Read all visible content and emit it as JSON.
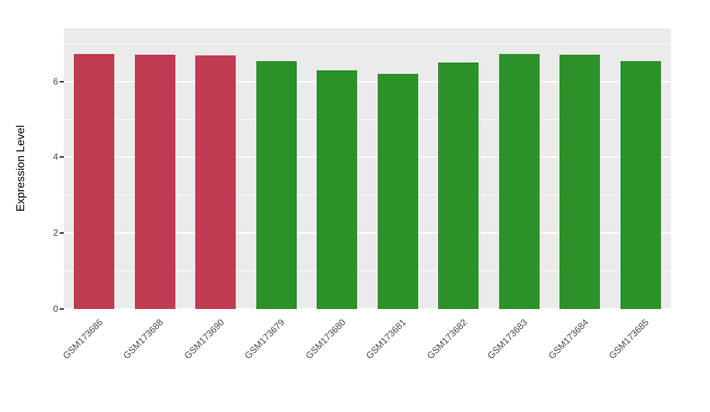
{
  "chart_data": {
    "type": "bar",
    "title": "",
    "xlabel": "",
    "ylabel": "Expression Level",
    "categories": [
      "GSM173686",
      "GSM173688",
      "GSM173690",
      "GSM173679",
      "GSM173680",
      "GSM173681",
      "GSM173682",
      "GSM173683",
      "GSM173684",
      "GSM173685"
    ],
    "values": [
      6.72,
      6.7,
      6.68,
      6.53,
      6.3,
      6.21,
      6.5,
      6.72,
      6.7,
      6.53
    ],
    "bar_colors": [
      "#C13B52",
      "#C13B52",
      "#C13B52",
      "#2B9128",
      "#2B9128",
      "#2B9128",
      "#2B9128",
      "#2B9128",
      "#2B9128",
      "#2B9128"
    ],
    "group_colors": {
      "red_group": "#C13B52",
      "green_group": "#2B9128"
    },
    "ylim": [
      0,
      7.4
    ],
    "y_major_ticks": [
      0,
      2,
      4,
      6
    ],
    "y_minor_ticks": [
      1,
      3,
      5,
      7
    ],
    "panel_bg": "#EBEBEB",
    "grid_color": "#FFFFFF",
    "grid": "on",
    "legend_position": "none"
  }
}
